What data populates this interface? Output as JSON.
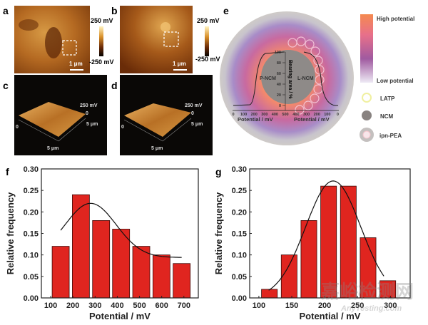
{
  "panels": {
    "a": {
      "letter": "a",
      "scale_max": "250 mV",
      "scale_min": "-250 mV",
      "scalebar": "1 μm"
    },
    "b": {
      "letter": "b",
      "scale_max": "250 mV",
      "scale_min": "-250 mV",
      "scalebar": "1 μm"
    },
    "c": {
      "letter": "c",
      "z_label": "250 mV",
      "z_zero": "0",
      "y_label": "5 μm",
      "origin": "0",
      "x_label": "5 μm"
    },
    "d": {
      "letter": "d",
      "z_label": "250 mV",
      "z_zero": "0",
      "y_label": "5 μm",
      "origin": "0",
      "x_label": "5 μm"
    },
    "e": {
      "letter": "e",
      "left_label": "P-NCM",
      "right_label": "L-NCM",
      "y_axis_label": "Bearing area / %",
      "y_ticks": [
        "100",
        "80",
        "60",
        "40",
        "20",
        "0"
      ],
      "x_ticks_left": [
        "0",
        "100",
        "200",
        "300",
        "400",
        "500"
      ],
      "x_ticks_right": [
        "400",
        "300",
        "200",
        "100",
        "0"
      ],
      "x_label_left": "Potential / mV",
      "x_label_right": "Potential / mV",
      "legend": {
        "high": "High potential",
        "low": "Low potential",
        "latp": "LATP",
        "ncm": "NCM",
        "pea": "ipn-PEA"
      }
    },
    "f": {
      "letter": "f"
    },
    "g": {
      "letter": "g"
    }
  },
  "watermark": {
    "cn": "嘉峪检测网",
    "en": "AnyTesting.com"
  },
  "colors": {
    "bar": "#e0251f",
    "bar_edge": "#3a0a08"
  },
  "chart_data": [
    {
      "id": "f",
      "type": "bar",
      "title": "",
      "xlabel": "Potential / mV",
      "ylabel": "Relative frequency",
      "xlim": [
        58,
        765
      ],
      "ylim": [
        0,
        0.3
      ],
      "xticks": [
        100,
        200,
        300,
        400,
        500,
        600,
        700
      ],
      "yticks": [
        "0.00",
        "0.05",
        "0.10",
        "0.15",
        "0.20",
        "0.25",
        "0.30"
      ],
      "bin_centers": [
        145,
        236,
        327,
        417,
        508,
        599,
        690
      ],
      "bin_width": 77,
      "values": [
        0.12,
        0.24,
        0.18,
        0.16,
        0.12,
        0.1,
        0.08
      ],
      "fit": {
        "type": "gaussian",
        "x_range": [
          145,
          690
        ],
        "center": 280,
        "peak": 0.22,
        "sigma": 115,
        "offset": 0.094
      }
    },
    {
      "id": "g",
      "type": "bar",
      "title": "",
      "xlabel": "Potential / mV",
      "ylabel": "Relative frequency",
      "xlim": [
        86,
        330
      ],
      "ylim": [
        0,
        0.3
      ],
      "xticks": [
        100,
        150,
        200,
        250,
        300
      ],
      "yticks": [
        "0.00",
        "0.05",
        "0.10",
        "0.15",
        "0.20",
        "0.25",
        "0.30"
      ],
      "bin_centers": [
        116,
        146,
        176,
        206,
        236,
        266,
        296
      ],
      "bin_width": 24,
      "values": [
        0.02,
        0.1,
        0.18,
        0.26,
        0.26,
        0.14,
        0.04
      ],
      "fit": {
        "type": "gaussian",
        "x_range": [
          115,
          290
        ],
        "center": 213,
        "peak": 0.272,
        "sigma": 42,
        "offset": 0
      }
    }
  ]
}
